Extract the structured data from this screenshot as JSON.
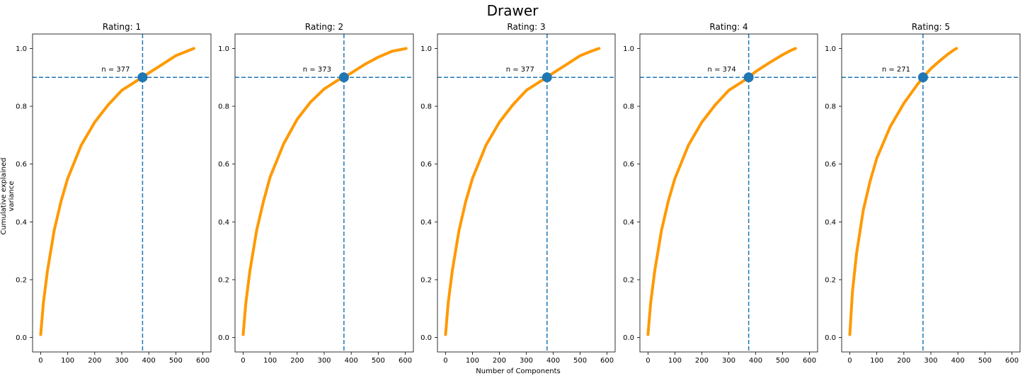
{
  "figure": {
    "suptitle": "Drawer",
    "ylabel": "Cumulative explained variance",
    "xlabel": "Number of Components"
  },
  "chart_data": [
    {
      "type": "line",
      "title": "Rating: 1",
      "xlim": [
        -30,
        630
      ],
      "ylim": [
        -0.05,
        1.05
      ],
      "xticks": [
        0,
        100,
        200,
        300,
        400,
        500,
        600
      ],
      "yticks": [
        0.0,
        0.2,
        0.4,
        0.6,
        0.8,
        1.0
      ],
      "ytick_labels": [
        "0.0",
        "0.2",
        "0.4",
        "0.6",
        "0.8",
        "1.0"
      ],
      "series": [
        {
          "x": [
            0,
            10,
            25,
            50,
            75,
            100,
            150,
            200,
            250,
            300,
            350,
            377,
            400,
            450,
            500,
            540,
            567
          ],
          "y": [
            0.01,
            0.12,
            0.23,
            0.37,
            0.47,
            0.55,
            0.665,
            0.745,
            0.805,
            0.855,
            0.885,
            0.9,
            0.915,
            0.945,
            0.975,
            0.99,
            1.0
          ]
        }
      ],
      "threshold": {
        "x": 377,
        "y": 0.9
      },
      "annotation": "n = 377",
      "grid": false,
      "colors": {
        "curve": "#ff9900",
        "lines": "#1f77b4",
        "marker": "#1f77b4"
      }
    },
    {
      "type": "line",
      "title": "Rating: 2",
      "xlim": [
        -30,
        630
      ],
      "ylim": [
        -0.05,
        1.05
      ],
      "xticks": [
        0,
        100,
        200,
        300,
        400,
        500,
        600
      ],
      "yticks": [
        0.0,
        0.2,
        0.4,
        0.6,
        0.8,
        1.0
      ],
      "ytick_labels": [
        "0.0",
        "0.2",
        "0.4",
        "0.6",
        "0.8",
        "1.0"
      ],
      "series": [
        {
          "x": [
            0,
            10,
            25,
            50,
            75,
            100,
            150,
            200,
            250,
            300,
            350,
            373,
            400,
            450,
            500,
            550,
            603
          ],
          "y": [
            0.01,
            0.12,
            0.23,
            0.37,
            0.47,
            0.555,
            0.67,
            0.755,
            0.815,
            0.86,
            0.89,
            0.9,
            0.915,
            0.945,
            0.97,
            0.99,
            1.0
          ]
        }
      ],
      "threshold": {
        "x": 373,
        "y": 0.9
      },
      "annotation": "n = 373",
      "grid": false,
      "colors": {
        "curve": "#ff9900",
        "lines": "#1f77b4",
        "marker": "#1f77b4"
      }
    },
    {
      "type": "line",
      "title": "Rating: 3",
      "xlim": [
        -30,
        630
      ],
      "ylim": [
        -0.05,
        1.05
      ],
      "xticks": [
        0,
        100,
        200,
        300,
        400,
        500,
        600
      ],
      "yticks": [
        0.0,
        0.2,
        0.4,
        0.6,
        0.8,
        1.0
      ],
      "ytick_labels": [
        "0.0",
        "0.2",
        "0.4",
        "0.6",
        "0.8",
        "1.0"
      ],
      "series": [
        {
          "x": [
            0,
            10,
            25,
            50,
            75,
            100,
            150,
            200,
            250,
            300,
            350,
            377,
            400,
            450,
            500,
            540,
            570
          ],
          "y": [
            0.01,
            0.12,
            0.23,
            0.37,
            0.47,
            0.55,
            0.665,
            0.745,
            0.805,
            0.855,
            0.885,
            0.9,
            0.915,
            0.945,
            0.975,
            0.99,
            1.0
          ]
        }
      ],
      "threshold": {
        "x": 377,
        "y": 0.9
      },
      "annotation": "n = 377",
      "grid": false,
      "colors": {
        "curve": "#ff9900",
        "lines": "#1f77b4",
        "marker": "#1f77b4"
      }
    },
    {
      "type": "line",
      "title": "Rating: 4",
      "xlim": [
        -30,
        630
      ],
      "ylim": [
        -0.05,
        1.05
      ],
      "xticks": [
        0,
        100,
        200,
        300,
        400,
        500,
        600
      ],
      "yticks": [
        0.0,
        0.2,
        0.4,
        0.6,
        0.8,
        1.0
      ],
      "ytick_labels": [
        "0.0",
        "0.2",
        "0.4",
        "0.6",
        "0.8",
        "1.0"
      ],
      "series": [
        {
          "x": [
            0,
            10,
            25,
            50,
            75,
            100,
            150,
            200,
            250,
            300,
            350,
            374,
            400,
            450,
            500,
            530,
            548
          ],
          "y": [
            0.01,
            0.12,
            0.23,
            0.37,
            0.47,
            0.55,
            0.665,
            0.745,
            0.805,
            0.855,
            0.885,
            0.9,
            0.92,
            0.95,
            0.978,
            0.993,
            1.0
          ]
        }
      ],
      "threshold": {
        "x": 374,
        "y": 0.9
      },
      "annotation": "n = 374",
      "grid": false,
      "colors": {
        "curve": "#ff9900",
        "lines": "#1f77b4",
        "marker": "#1f77b4"
      }
    },
    {
      "type": "line",
      "title": "Rating: 5",
      "xlim": [
        -30,
        630
      ],
      "ylim": [
        -0.05,
        1.05
      ],
      "xticks": [
        0,
        100,
        200,
        300,
        400,
        500,
        600
      ],
      "yticks": [
        0.0,
        0.2,
        0.4,
        0.6,
        0.8,
        1.0
      ],
      "ytick_labels": [
        "0.0",
        "0.2",
        "0.4",
        "0.6",
        "0.8",
        "1.0"
      ],
      "series": [
        {
          "x": [
            0,
            10,
            25,
            50,
            75,
            100,
            150,
            200,
            250,
            271,
            300,
            330,
            360,
            385,
            395
          ],
          "y": [
            0.01,
            0.16,
            0.29,
            0.44,
            0.54,
            0.62,
            0.73,
            0.81,
            0.875,
            0.9,
            0.93,
            0.955,
            0.978,
            0.995,
            1.0
          ]
        }
      ],
      "threshold": {
        "x": 271,
        "y": 0.9
      },
      "annotation": "n = 271",
      "grid": false,
      "colors": {
        "curve": "#ff9900",
        "lines": "#1f77b4",
        "marker": "#1f77b4"
      }
    }
  ]
}
